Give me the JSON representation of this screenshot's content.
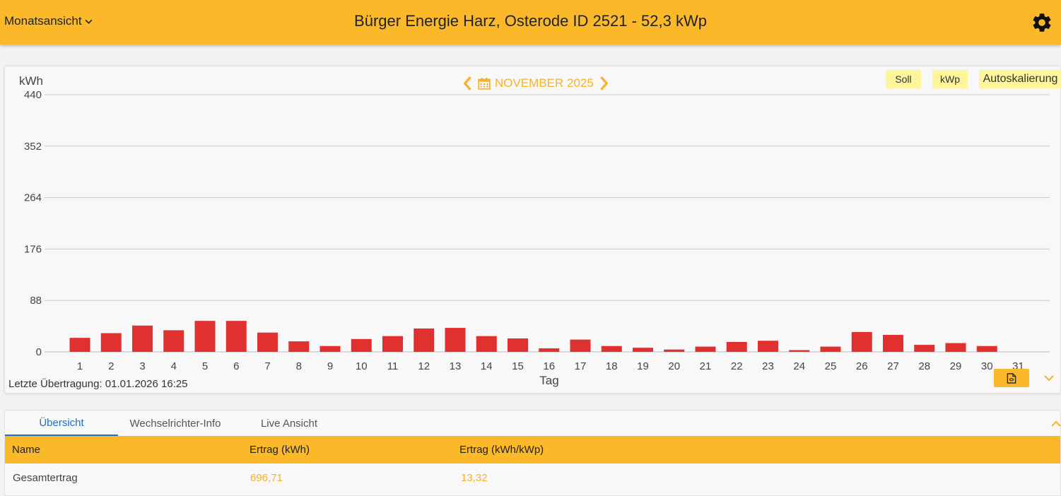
{
  "header": {
    "view_label": "Monatsansicht",
    "title": "Bürger Energie Harz, Osterode ID 2521 - 52,3 kWp"
  },
  "chart_nav": {
    "month_label": "NOVEMBER 2025"
  },
  "toggles": {
    "soll": "Soll",
    "kwp": "kWp",
    "autoscale": "Autoskalierung"
  },
  "footer": {
    "last_transfer": "Letzte Übertragung: 01.01.2026 16:25"
  },
  "colors": {
    "accent": "#fbb92a",
    "bar": "#e03030",
    "active_tab": "#1f6fbf"
  },
  "chart_data": {
    "type": "bar",
    "title": "",
    "xlabel": "Tag",
    "ylabel": "kWh",
    "ylim": [
      0,
      440
    ],
    "yticks": [
      0,
      88,
      176,
      264,
      352,
      440
    ],
    "grid": true,
    "categories": [
      "1",
      "2",
      "3",
      "4",
      "5",
      "6",
      "7",
      "8",
      "9",
      "10",
      "11",
      "12",
      "13",
      "14",
      "15",
      "16",
      "17",
      "18",
      "19",
      "20",
      "21",
      "22",
      "23",
      "24",
      "25",
      "26",
      "27",
      "28",
      "29",
      "30",
      "31"
    ],
    "values": [
      24,
      32,
      45,
      37,
      53,
      53,
      33,
      18,
      10,
      22,
      27,
      40,
      41,
      27,
      23,
      6,
      21,
      10,
      7,
      4,
      9,
      17,
      19,
      3,
      9,
      34,
      29,
      12,
      15,
      10,
      null
    ]
  },
  "tabs": [
    {
      "label": "Übersicht"
    },
    {
      "label": "Wechselrichter-Info"
    },
    {
      "label": "Live Ansicht"
    }
  ],
  "table": {
    "headers": [
      "Name",
      "Ertrag (kWh)",
      "Ertrag (kWh/kWp)"
    ],
    "rows": [
      {
        "name": "Gesamtertrag",
        "kwh": "696,71",
        "kwh_kwp": "13,32"
      }
    ]
  }
}
